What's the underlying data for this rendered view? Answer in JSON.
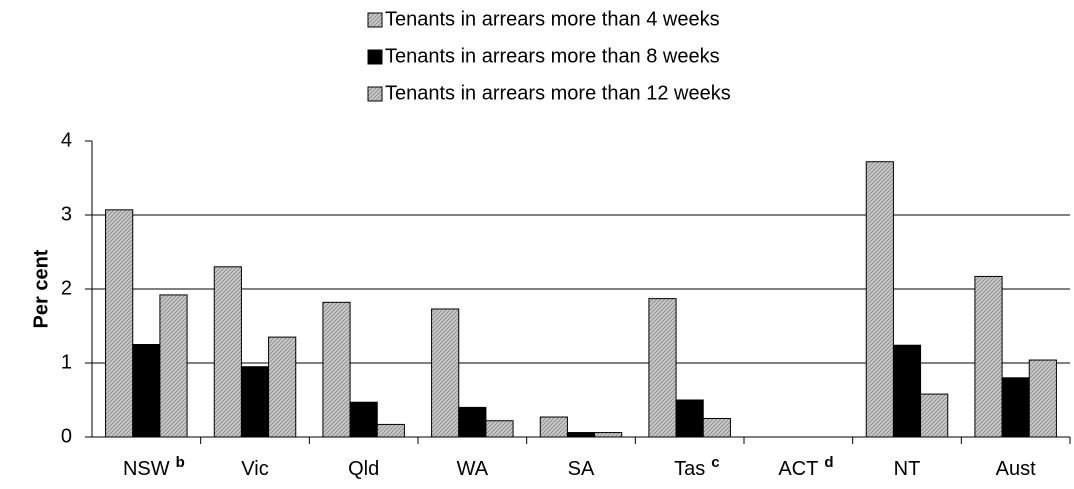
{
  "chart_data": {
    "type": "bar",
    "y_label": "Per cent",
    "categories": [
      "NSW",
      "Vic",
      "Qld",
      "WA",
      "SA",
      "Tas",
      "ACT",
      "NT",
      "Aust"
    ],
    "category_notes": [
      "b",
      null,
      null,
      null,
      null,
      "c",
      "d",
      null,
      null
    ],
    "series": [
      {
        "name": "Tenants in arrears more than 4 weeks",
        "color": "#c8c8c8",
        "hatched": true,
        "values": [
          3.07,
          2.3,
          1.82,
          1.73,
          0.27,
          1.87,
          null,
          3.72,
          2.17
        ]
      },
      {
        "name": "Tenants in arrears more than 8 weeks",
        "color": "#000000",
        "hatched": false,
        "values": [
          1.25,
          0.95,
          0.47,
          0.4,
          0.06,
          0.5,
          null,
          1.24,
          0.8
        ]
      },
      {
        "name": "Tenants in arrears more than 12 weeks",
        "color": "#c8c8c8",
        "hatched": true,
        "values": [
          1.92,
          1.35,
          0.17,
          0.22,
          0.06,
          0.25,
          null,
          0.58,
          1.04
        ]
      }
    ],
    "ylim": [
      0,
      4
    ],
    "yticks": [
      0,
      1,
      2,
      3,
      4
    ],
    "grid": true
  }
}
